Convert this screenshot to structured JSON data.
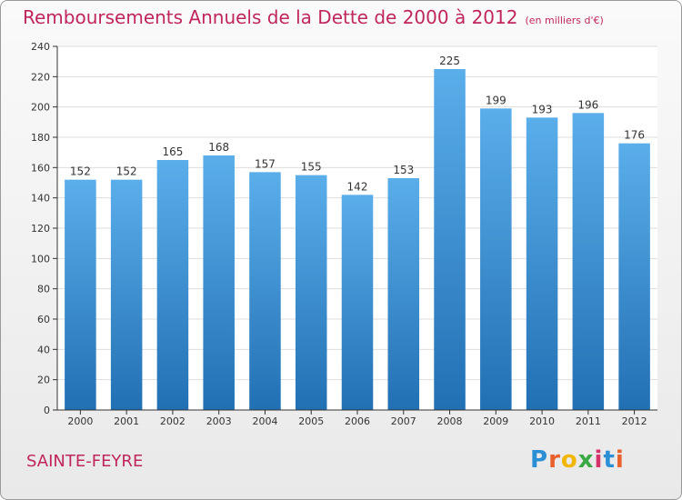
{
  "title": "Remboursements Annuels de la Dette de 2000 à 2012",
  "unit": "(en milliers d'€)",
  "commune": "SAINTE-FEYRE",
  "logo": "Proxiti",
  "colors": {
    "title": "#c0265e",
    "bar_top": "#5aaeea",
    "bar_bottom": "#2270b4",
    "grid": "#dddddd",
    "axis": "#333333"
  },
  "chart_data": {
    "type": "bar",
    "title": "Remboursements Annuels de la Dette de 2000 à 2012",
    "categories": [
      "2000",
      "2001",
      "2002",
      "2003",
      "2004",
      "2005",
      "2006",
      "2007",
      "2008",
      "2009",
      "2010",
      "2011",
      "2012"
    ],
    "values": [
      152,
      152,
      165,
      168,
      157,
      155,
      142,
      153,
      225,
      199,
      193,
      196,
      176
    ],
    "ylim": [
      0,
      240
    ],
    "yticks": [
      0,
      20,
      40,
      60,
      80,
      100,
      120,
      140,
      160,
      180,
      200,
      220,
      240
    ],
    "grid": true,
    "data_labels": true
  }
}
